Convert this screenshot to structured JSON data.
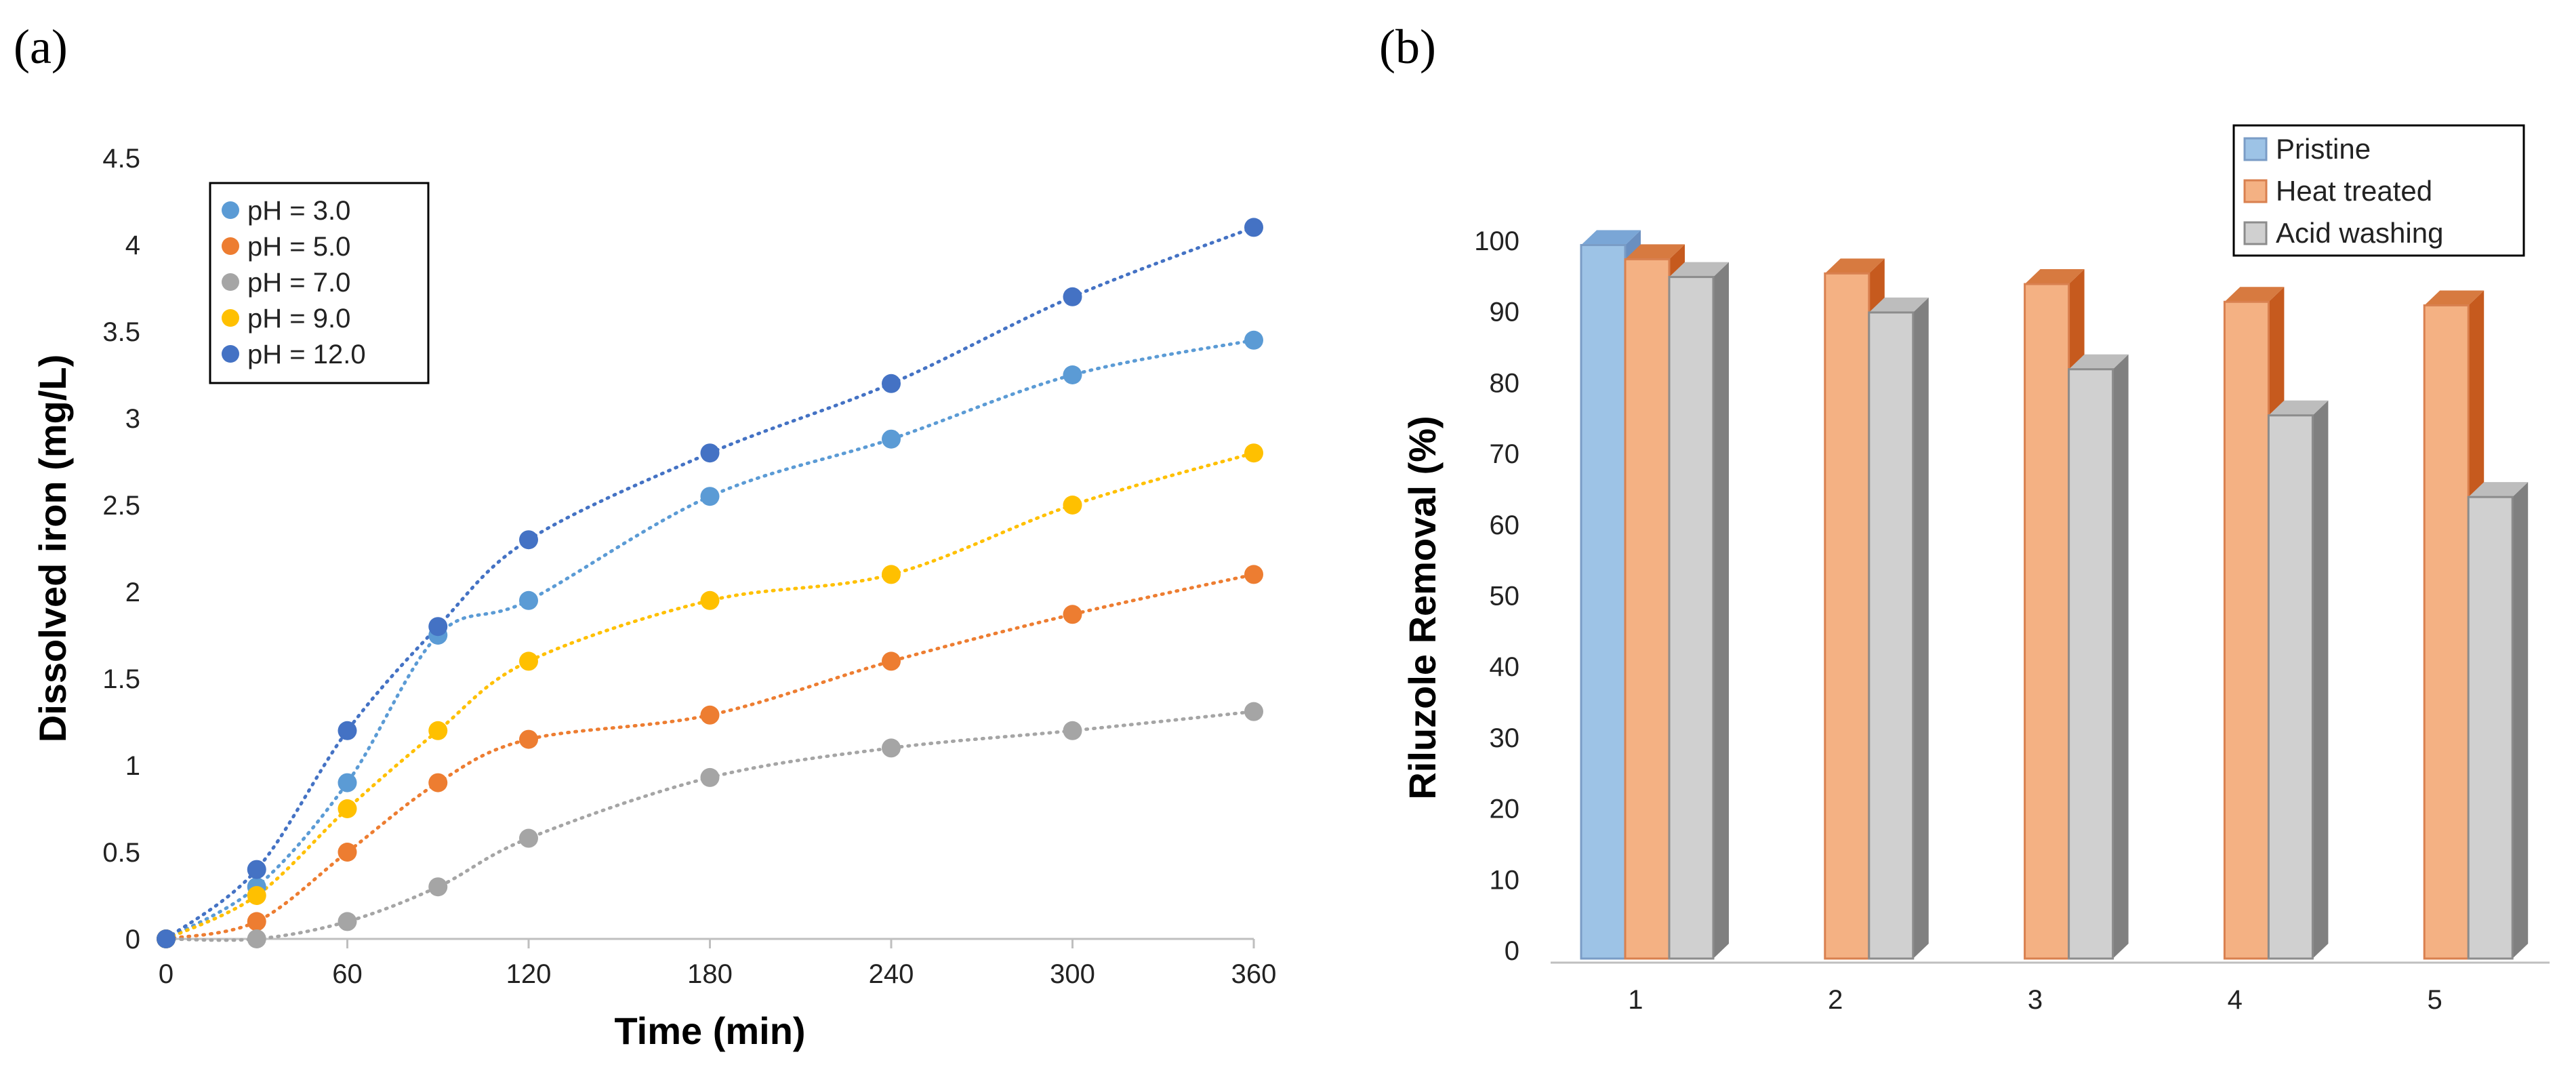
{
  "panels": {
    "a": "(a)",
    "b": "(b)"
  },
  "chart_data": [
    {
      "type": "scatter",
      "panel": "(a)",
      "title": "",
      "xlabel": "Time (min)",
      "ylabel": "Dissolved iron (mg/L)",
      "xlim": [
        0,
        360
      ],
      "ylim": [
        0,
        4.5
      ],
      "xticks": [
        0,
        60,
        120,
        180,
        240,
        300,
        360
      ],
      "yticks": [
        0,
        0.5,
        1,
        1.5,
        2,
        2.5,
        3,
        3.5,
        4,
        4.5
      ],
      "grid": false,
      "legend_position": "top-left",
      "trendline": "dotted polynomial",
      "x": [
        0,
        30,
        60,
        90,
        120,
        180,
        240,
        300,
        360
      ],
      "series": [
        {
          "name": "pH = 3.0",
          "color": "#5B9BD5",
          "values": [
            0,
            0.3,
            0.9,
            1.75,
            1.95,
            2.55,
            2.88,
            3.25,
            3.45
          ]
        },
        {
          "name": "pH = 5.0",
          "color": "#ED7D31",
          "values": [
            0,
            0.1,
            0.5,
            0.9,
            1.15,
            1.29,
            1.6,
            1.87,
            2.1
          ]
        },
        {
          "name": "pH = 7.0",
          "color": "#A5A5A5",
          "values": [
            0,
            0.0,
            0.1,
            0.3,
            0.58,
            0.93,
            1.1,
            1.2,
            1.31
          ]
        },
        {
          "name": "pH = 9.0",
          "color": "#FFC000",
          "values": [
            0,
            0.25,
            0.75,
            1.2,
            1.6,
            1.95,
            2.1,
            2.5,
            2.8
          ]
        },
        {
          "name": "pH = 12.0",
          "color": "#4472C4",
          "values": [
            0,
            0.4,
            1.2,
            1.8,
            2.3,
            2.8,
            3.2,
            3.7,
            4.1
          ]
        }
      ]
    },
    {
      "type": "bar",
      "panel": "(b)",
      "title": "",
      "xlabel": "",
      "ylabel": "Riluzole  Removal (%)",
      "ylim": [
        0,
        100
      ],
      "yticks": [
        0,
        10,
        20,
        30,
        40,
        50,
        60,
        70,
        80,
        90,
        100
      ],
      "grid": false,
      "legend_position": "top-right",
      "style": "3d",
      "categories": [
        "1",
        "2",
        "3",
        "4",
        "5"
      ],
      "series": [
        {
          "name": "Pristine",
          "color": "#9DC3E6",
          "values": [
            99,
            null,
            null,
            null,
            null
          ]
        },
        {
          "name": "Heat treated",
          "color": "#F4B183",
          "values": [
            97,
            95,
            93.5,
            91,
            90.5
          ]
        },
        {
          "name": "Acid washing",
          "color": "#D0D0D0",
          "values": [
            94.5,
            89.5,
            81.5,
            75,
            63.5
          ]
        }
      ]
    }
  ]
}
